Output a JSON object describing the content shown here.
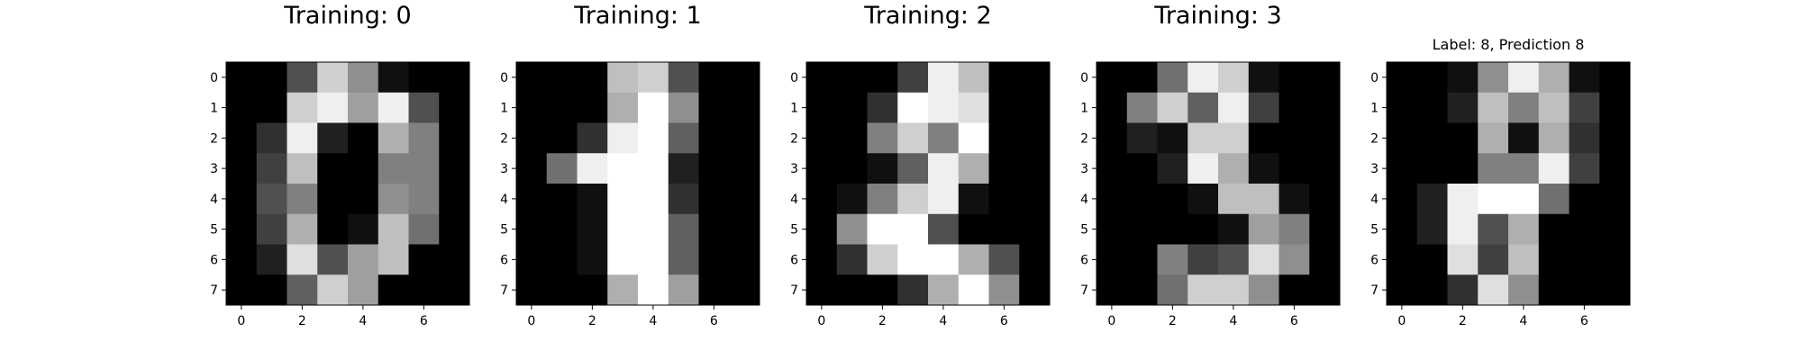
{
  "chart_data": [
    {
      "type": "heatmap",
      "title": "Training: 0",
      "colormap": "gray",
      "vmin": 0,
      "vmax": 16,
      "xticks": [
        0,
        2,
        4,
        6
      ],
      "yticks": [
        0,
        1,
        2,
        3,
        4,
        5,
        6,
        7
      ],
      "values": [
        [
          0,
          0,
          5,
          13,
          9,
          1,
          0,
          0
        ],
        [
          0,
          0,
          13,
          15,
          10,
          15,
          5,
          0
        ],
        [
          0,
          3,
          15,
          2,
          0,
          11,
          8,
          0
        ],
        [
          0,
          4,
          12,
          0,
          0,
          8,
          8,
          0
        ],
        [
          0,
          5,
          8,
          0,
          0,
          9,
          8,
          0
        ],
        [
          0,
          4,
          11,
          0,
          1,
          12,
          7,
          0
        ],
        [
          0,
          2,
          14,
          5,
          10,
          12,
          0,
          0
        ],
        [
          0,
          0,
          6,
          13,
          10,
          0,
          0,
          0
        ]
      ]
    },
    {
      "type": "heatmap",
      "title": "Training: 1",
      "colormap": "gray",
      "vmin": 0,
      "vmax": 16,
      "xticks": [
        0,
        2,
        4,
        6
      ],
      "yticks": [
        0,
        1,
        2,
        3,
        4,
        5,
        6,
        7
      ],
      "values": [
        [
          0,
          0,
          0,
          12,
          13,
          5,
          0,
          0
        ],
        [
          0,
          0,
          0,
          11,
          16,
          9,
          0,
          0
        ],
        [
          0,
          0,
          3,
          15,
          16,
          6,
          0,
          0
        ],
        [
          0,
          7,
          15,
          16,
          16,
          2,
          0,
          0
        ],
        [
          0,
          0,
          1,
          16,
          16,
          3,
          0,
          0
        ],
        [
          0,
          0,
          1,
          16,
          16,
          6,
          0,
          0
        ],
        [
          0,
          0,
          1,
          16,
          16,
          6,
          0,
          0
        ],
        [
          0,
          0,
          0,
          11,
          16,
          10,
          0,
          0
        ]
      ]
    },
    {
      "type": "heatmap",
      "title": "Training: 2",
      "colormap": "gray",
      "vmin": 0,
      "vmax": 16,
      "xticks": [
        0,
        2,
        4,
        6
      ],
      "yticks": [
        0,
        1,
        2,
        3,
        4,
        5,
        6,
        7
      ],
      "values": [
        [
          0,
          0,
          0,
          4,
          15,
          12,
          0,
          0
        ],
        [
          0,
          0,
          3,
          16,
          15,
          14,
          0,
          0
        ],
        [
          0,
          0,
          8,
          13,
          8,
          16,
          0,
          0
        ],
        [
          0,
          0,
          1,
          6,
          15,
          11,
          0,
          0
        ],
        [
          0,
          1,
          8,
          13,
          15,
          1,
          0,
          0
        ],
        [
          0,
          9,
          16,
          16,
          5,
          0,
          0,
          0
        ],
        [
          0,
          3,
          13,
          16,
          16,
          11,
          5,
          0
        ],
        [
          0,
          0,
          0,
          3,
          11,
          16,
          9,
          0
        ]
      ]
    },
    {
      "type": "heatmap",
      "title": "Training: 3",
      "colormap": "gray",
      "vmin": 0,
      "vmax": 16,
      "xticks": [
        0,
        2,
        4,
        6
      ],
      "yticks": [
        0,
        1,
        2,
        3,
        4,
        5,
        6,
        7
      ],
      "values": [
        [
          0,
          0,
          7,
          15,
          13,
          1,
          0,
          0
        ],
        [
          0,
          8,
          13,
          6,
          15,
          4,
          0,
          0
        ],
        [
          0,
          2,
          1,
          13,
          13,
          0,
          0,
          0
        ],
        [
          0,
          0,
          2,
          15,
          11,
          1,
          0,
          0
        ],
        [
          0,
          0,
          0,
          1,
          12,
          12,
          1,
          0
        ],
        [
          0,
          0,
          0,
          0,
          1,
          10,
          8,
          0
        ],
        [
          0,
          0,
          8,
          4,
          5,
          14,
          9,
          0
        ],
        [
          0,
          0,
          7,
          13,
          13,
          9,
          0,
          0
        ]
      ]
    },
    {
      "type": "heatmap",
      "title": "Label: 8, Prediction 8",
      "colormap": "gray",
      "vmin": 0,
      "vmax": 16,
      "xticks": [
        0,
        2,
        4,
        6
      ],
      "yticks": [
        0,
        1,
        2,
        3,
        4,
        5,
        6,
        7
      ],
      "values": [
        [
          0,
          0,
          1,
          9,
          15,
          11,
          1,
          0
        ],
        [
          0,
          0,
          2,
          12,
          8,
          12,
          4,
          0
        ],
        [
          0,
          0,
          0,
          11,
          1,
          11,
          3,
          0
        ],
        [
          0,
          0,
          0,
          8,
          8,
          15,
          4,
          0
        ],
        [
          0,
          2,
          15,
          16,
          16,
          7,
          0,
          0
        ],
        [
          0,
          2,
          15,
          5,
          11,
          0,
          0,
          0
        ],
        [
          0,
          0,
          14,
          4,
          12,
          0,
          0,
          0
        ],
        [
          0,
          0,
          3,
          14,
          9,
          0,
          0,
          0
        ]
      ]
    }
  ]
}
